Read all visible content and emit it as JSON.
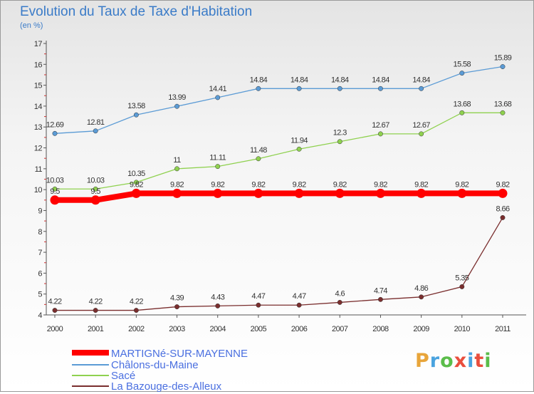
{
  "header": {
    "title": "Evolution du Taux de Taxe d'Habitation",
    "subtitle": "(en %)"
  },
  "logo": {
    "text": "Proxiti",
    "colors": [
      "#e8a53a",
      "#4aa3df",
      "#5bbd4a",
      "#e94e3d",
      "#4aa3df",
      "#e94e3d",
      "#5bbd4a"
    ]
  },
  "chart_data": {
    "type": "line",
    "title": "Evolution du Taux de Taxe d'Habitation",
    "subtitle": "(en %)",
    "x": [
      "2000",
      "2001",
      "2002",
      "2003",
      "2004",
      "2005",
      "2006",
      "2007",
      "2008",
      "2009",
      "2010",
      "2011"
    ],
    "ylim": [
      4,
      17
    ],
    "yticks": [
      "4",
      "5",
      "6",
      "7",
      "8",
      "9",
      "10",
      "11",
      "12",
      "13",
      "14",
      "15",
      "16",
      "17"
    ],
    "legend": "bottom-left",
    "grid": false,
    "series": [
      {
        "name": "MARTIGNé-SUR-MAYENNE",
        "color": "#ff0000",
        "values": [
          9.5,
          9.5,
          9.82,
          9.82,
          9.82,
          9.82,
          9.82,
          9.82,
          9.82,
          9.82,
          9.82,
          9.82
        ],
        "labels": [
          "9.5",
          "9.5",
          "9.82",
          "9.82",
          "9.82",
          "9.82",
          "9.82",
          "9.82",
          "9.82",
          "9.82",
          "9.82",
          "9.82"
        ]
      },
      {
        "name": "Châlons-du-Maine",
        "color": "#5b9bd5",
        "values": [
          12.69,
          12.81,
          13.58,
          13.99,
          14.41,
          14.84,
          14.84,
          14.84,
          14.84,
          14.84,
          15.58,
          15.89
        ],
        "labels": [
          "12.69",
          "12.81",
          "13.58",
          "13.99",
          "14.41",
          "14.84",
          "14.84",
          "14.84",
          "14.84",
          "14.84",
          "15.58",
          "15.89"
        ]
      },
      {
        "name": "Sacé",
        "color": "#8fd14f",
        "values": [
          10.03,
          10.03,
          10.35,
          11,
          11.11,
          11.48,
          11.94,
          12.3,
          12.67,
          12.67,
          13.68,
          13.68
        ],
        "labels": [
          "10.03",
          "10.03",
          "10.35",
          "11",
          "11.11",
          "11.48",
          "11.94",
          "12.3",
          "12.67",
          "12.67",
          "13.68",
          "13.68"
        ]
      },
      {
        "name": "La Bazouge-des-Alleux",
        "color": "#7a2e2e",
        "values": [
          4.22,
          4.22,
          4.22,
          4.39,
          4.43,
          4.47,
          4.47,
          4.6,
          4.74,
          4.86,
          5.35,
          8.66
        ],
        "labels": [
          "4.22",
          "4.22",
          "4.22",
          "4.39",
          "4.43",
          "4.47",
          "4.47",
          "4.6",
          "4.74",
          "4.86",
          "5.35",
          "8.66"
        ]
      }
    ]
  }
}
